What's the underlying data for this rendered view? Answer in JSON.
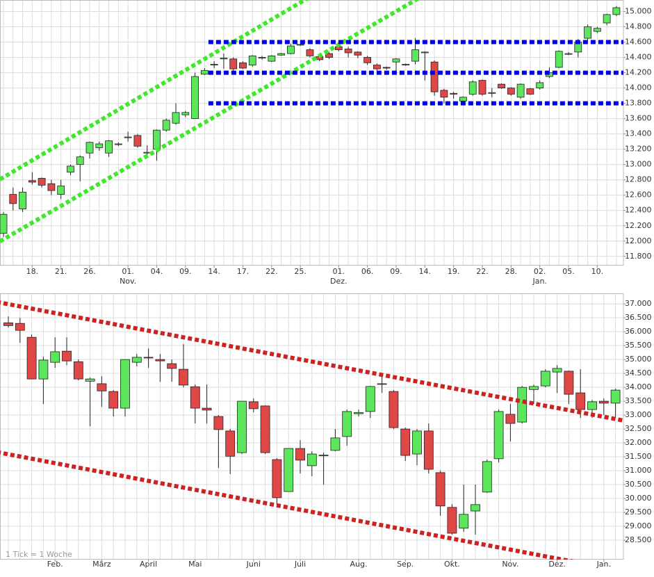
{
  "chart_data": [
    {
      "type": "candlestick",
      "categories": [
        null,
        null,
        null,
        "18.",
        null,
        null,
        "21.",
        null,
        null,
        "26.",
        null,
        null,
        null,
        "01.",
        null,
        null,
        "04.",
        null,
        null,
        "09.",
        null,
        null,
        "14.",
        null,
        null,
        "17.",
        null,
        null,
        "22.",
        null,
        null,
        "25.",
        null,
        null,
        null,
        "01.",
        null,
        null,
        "06.",
        null,
        null,
        "09.",
        null,
        null,
        "14.",
        null,
        null,
        "19.",
        null,
        null,
        "22.",
        null,
        null,
        "28.",
        null,
        null,
        "02.",
        null,
        null,
        "05.",
        null,
        null,
        "10.",
        null,
        null
      ],
      "month_categories": [
        null,
        null,
        null,
        null,
        null,
        null,
        null,
        null,
        null,
        null,
        null,
        null,
        null,
        "Nov.",
        null,
        null,
        null,
        null,
        null,
        null,
        null,
        null,
        null,
        null,
        null,
        null,
        null,
        null,
        null,
        null,
        null,
        null,
        null,
        null,
        null,
        "Dez.",
        null,
        null,
        null,
        null,
        null,
        null,
        null,
        null,
        null,
        null,
        null,
        null,
        null,
        null,
        null,
        null,
        null,
        null,
        null,
        null,
        "Jan.",
        null,
        null,
        null,
        null,
        null,
        null,
        null,
        null
      ],
      "open": [
        12100,
        12610,
        12420,
        12790,
        12820,
        12750,
        12610,
        12900,
        13000,
        13150,
        13220,
        13150,
        13260,
        13350,
        13380,
        13150,
        13200,
        13450,
        13540,
        13650,
        13600,
        14180,
        14300,
        14380,
        14380,
        14330,
        14300,
        14390,
        14350,
        14430,
        14450,
        14560,
        14500,
        14410,
        14450,
        14540,
        14510,
        14470,
        14400,
        14300,
        14270,
        14340,
        14300,
        14350,
        14460,
        14340,
        13970,
        13930,
        13830,
        13920,
        14100,
        13930,
        14050,
        14000,
        13880,
        13990,
        14000,
        14150,
        14270,
        14440,
        14470,
        14650,
        14740,
        14850,
        14960
      ],
      "high": [
        12380,
        12700,
        12700,
        12900,
        12830,
        12800,
        12800,
        13000,
        13120,
        13300,
        13300,
        13320,
        13290,
        13430,
        13400,
        13250,
        13460,
        13600,
        13800,
        13700,
        14200,
        14260,
        14350,
        14450,
        14400,
        14350,
        14430,
        14420,
        14430,
        14460,
        14580,
        14580,
        14520,
        14430,
        14470,
        14570,
        14540,
        14480,
        14420,
        14320,
        14280,
        14390,
        14320,
        14650,
        14480,
        14360,
        13990,
        13950,
        13890,
        14100,
        14110,
        14000,
        14060,
        14010,
        14060,
        14000,
        14100,
        14270,
        14490,
        14470,
        14640,
        14830,
        14800,
        14970,
        15070
      ],
      "low": [
        12050,
        12400,
        12380,
        12740,
        12700,
        12600,
        12550,
        12860,
        12780,
        13080,
        13180,
        13100,
        13240,
        13300,
        13220,
        13100,
        13050,
        13430,
        13520,
        13620,
        13600,
        14170,
        14260,
        14250,
        14200,
        14250,
        14280,
        14370,
        14340,
        14420,
        14440,
        14550,
        14400,
        14350,
        14380,
        14480,
        14400,
        14390,
        14300,
        14230,
        14240,
        14200,
        14290,
        14310,
        14100,
        13900,
        13800,
        13860,
        13810,
        13900,
        13900,
        13880,
        13990,
        13900,
        13860,
        13910,
        13980,
        14130,
        14260,
        14430,
        14400,
        14620,
        14720,
        14820,
        14940
      ],
      "close": [
        12350,
        12490,
        12640,
        12770,
        12730,
        12660,
        12720,
        12980,
        13100,
        13290,
        13270,
        13310,
        13270,
        13360,
        13240,
        13160,
        13450,
        13580,
        13680,
        13680,
        14150,
        14230,
        14310,
        14390,
        14250,
        14260,
        14420,
        14400,
        14420,
        14450,
        14550,
        14570,
        14420,
        14370,
        14400,
        14500,
        14460,
        14430,
        14330,
        14250,
        14260,
        14380,
        14310,
        14500,
        14470,
        13950,
        13880,
        13920,
        13880,
        14080,
        13920,
        13940,
        14000,
        13920,
        14050,
        13920,
        14070,
        14200,
        14480,
        14450,
        14600,
        14800,
        14780,
        14960,
        15050
      ],
      "up_color": "#5ce65c",
      "down_color": "#e04848",
      "ylim": [
        11680,
        15150
      ],
      "yticks": [
        {
          "value": 11800,
          "label": "11.800"
        },
        {
          "value": 12000,
          "label": "12.000"
        },
        {
          "value": 12200,
          "label": "12.200"
        },
        {
          "value": 12400,
          "label": "12.400"
        },
        {
          "value": 12600,
          "label": "12.600"
        },
        {
          "value": 12800,
          "label": "12.800"
        },
        {
          "value": 13000,
          "label": "13.000"
        },
        {
          "value": 13200,
          "label": "13.200"
        },
        {
          "value": 13400,
          "label": "13.400"
        },
        {
          "value": 13600,
          "label": "13.600"
        },
        {
          "value": 13800,
          "label": "13.800"
        },
        {
          "value": 14000,
          "label": "14.000"
        },
        {
          "value": 14200,
          "label": "14.200"
        },
        {
          "value": 14400,
          "label": "14.400"
        },
        {
          "value": 14600,
          "label": "14.600"
        },
        {
          "value": 14800,
          "label": "14.800"
        },
        {
          "value": 15000,
          "label": "15.000"
        }
      ],
      "grid": true,
      "trendlines": [
        {
          "color": "#3fe82a",
          "points": [
            [
              -1,
              12760
            ],
            [
              32,
              15190
            ]
          ]
        },
        {
          "color": "#3fe82a",
          "points": [
            [
              -1,
              11950
            ],
            [
              44,
              15220
            ]
          ]
        }
      ],
      "levels": [
        {
          "color": "#0000e0",
          "value": 14600,
          "start": 21.4
        },
        {
          "color": "#0000e0",
          "value": 14200,
          "start": 21.4
        },
        {
          "color": "#0000e0",
          "value": 13800,
          "start": 21.4
        }
      ]
    },
    {
      "type": "candlestick",
      "categories": [
        null,
        null,
        null,
        null,
        "Feb.",
        null,
        null,
        null,
        "März",
        null,
        null,
        null,
        "April",
        null,
        null,
        null,
        "Mai",
        null,
        null,
        null,
        null,
        "Juni",
        null,
        null,
        null,
        "Juli",
        null,
        null,
        null,
        null,
        "Aug.",
        null,
        null,
        null,
        "Sep.",
        null,
        null,
        null,
        "Okt.",
        null,
        null,
        null,
        null,
        "Nov.",
        null,
        null,
        null,
        "Dez.",
        null,
        null,
        null,
        "Jan.",
        null
      ],
      "open": [
        36320,
        36300,
        35800,
        34300,
        34900,
        35300,
        34920,
        34220,
        34130,
        33850,
        33250,
        34900,
        35080,
        35000,
        34850,
        34650,
        34020,
        33250,
        32950,
        32430,
        31650,
        33480,
        33330,
        31400,
        30250,
        31800,
        31180,
        31540,
        31730,
        32230,
        33050,
        33130,
        34120,
        33850,
        32500,
        31600,
        32430,
        30930,
        29680,
        28930,
        29550,
        30230,
        31430,
        33030,
        32750,
        33920,
        34050,
        34550,
        34580,
        33800,
        33200,
        33500,
        33430
      ],
      "high": [
        36550,
        36500,
        35900,
        35100,
        35800,
        35800,
        35000,
        34350,
        34400,
        33900,
        35000,
        35200,
        35400,
        35200,
        35000,
        35550,
        34100,
        34100,
        33000,
        32500,
        33500,
        33600,
        33350,
        31450,
        31800,
        32100,
        31700,
        31650,
        32500,
        33200,
        33200,
        34050,
        34500,
        33900,
        32550,
        32500,
        32700,
        31000,
        29800,
        30500,
        30500,
        31400,
        33200,
        33400,
        34050,
        34100,
        34650,
        34800,
        34600,
        34650,
        33550,
        33600,
        33950
      ],
      "low": [
        36150,
        35600,
        34300,
        33400,
        34700,
        34800,
        34250,
        32600,
        33300,
        32950,
        32950,
        34750,
        34700,
        34200,
        34200,
        34000,
        32700,
        32700,
        31100,
        30880,
        31600,
        33100,
        31600,
        29700,
        30250,
        30900,
        30800,
        30500,
        31700,
        31900,
        32950,
        32900,
        33800,
        32500,
        31350,
        31200,
        30900,
        29380,
        28700,
        28800,
        28700,
        30200,
        31300,
        32050,
        32700,
        33400,
        34000,
        33800,
        33400,
        32900,
        32900,
        33000,
        32900
      ],
      "close": [
        36220,
        36050,
        34300,
        34980,
        35280,
        34950,
        34300,
        34300,
        33870,
        33250,
        35000,
        35080,
        35070,
        34950,
        34680,
        34080,
        33250,
        33180,
        32480,
        31520,
        33500,
        33230,
        31650,
        30030,
        31800,
        31380,
        31600,
        31560,
        32180,
        33130,
        33090,
        34030,
        34130,
        32550,
        31550,
        32430,
        31050,
        29730,
        28750,
        29430,
        29780,
        31330,
        33130,
        32700,
        34000,
        34030,
        34580,
        34680,
        33750,
        33200,
        33480,
        33430,
        33900
      ],
      "up_color": "#5ce65c",
      "down_color": "#e04848",
      "ylim": [
        27800,
        37380
      ],
      "yticks": [
        {
          "value": 28500,
          "label": "28.500"
        },
        {
          "value": 29000,
          "label": "29.000"
        },
        {
          "value": 29500,
          "label": "29.500"
        },
        {
          "value": 30000,
          "label": "30.000"
        },
        {
          "value": 30500,
          "label": "30.500"
        },
        {
          "value": 31000,
          "label": "31.000"
        },
        {
          "value": 31500,
          "label": "31.500"
        },
        {
          "value": 32000,
          "label": "32.000"
        },
        {
          "value": 32500,
          "label": "32.500"
        },
        {
          "value": 33000,
          "label": "33.000"
        },
        {
          "value": 33500,
          "label": "33.500"
        },
        {
          "value": 34000,
          "label": "34.000"
        },
        {
          "value": 34500,
          "label": "34.500"
        },
        {
          "value": 35000,
          "label": "35.000"
        },
        {
          "value": 35500,
          "label": "35.500"
        },
        {
          "value": 36000,
          "label": "36.000"
        },
        {
          "value": 36500,
          "label": "36.500"
        },
        {
          "value": 37000,
          "label": "37.000"
        }
      ],
      "grid": true,
      "trendlines": [
        {
          "color": "#cc2222",
          "points": [
            [
              -1,
              37070
            ],
            [
              54,
              32700
            ]
          ]
        },
        {
          "color": "#cc2222",
          "points": [
            [
              -1,
              31670
            ],
            [
              50,
              27600
            ]
          ]
        }
      ],
      "note": "1 Tick = 1 Woche"
    }
  ]
}
